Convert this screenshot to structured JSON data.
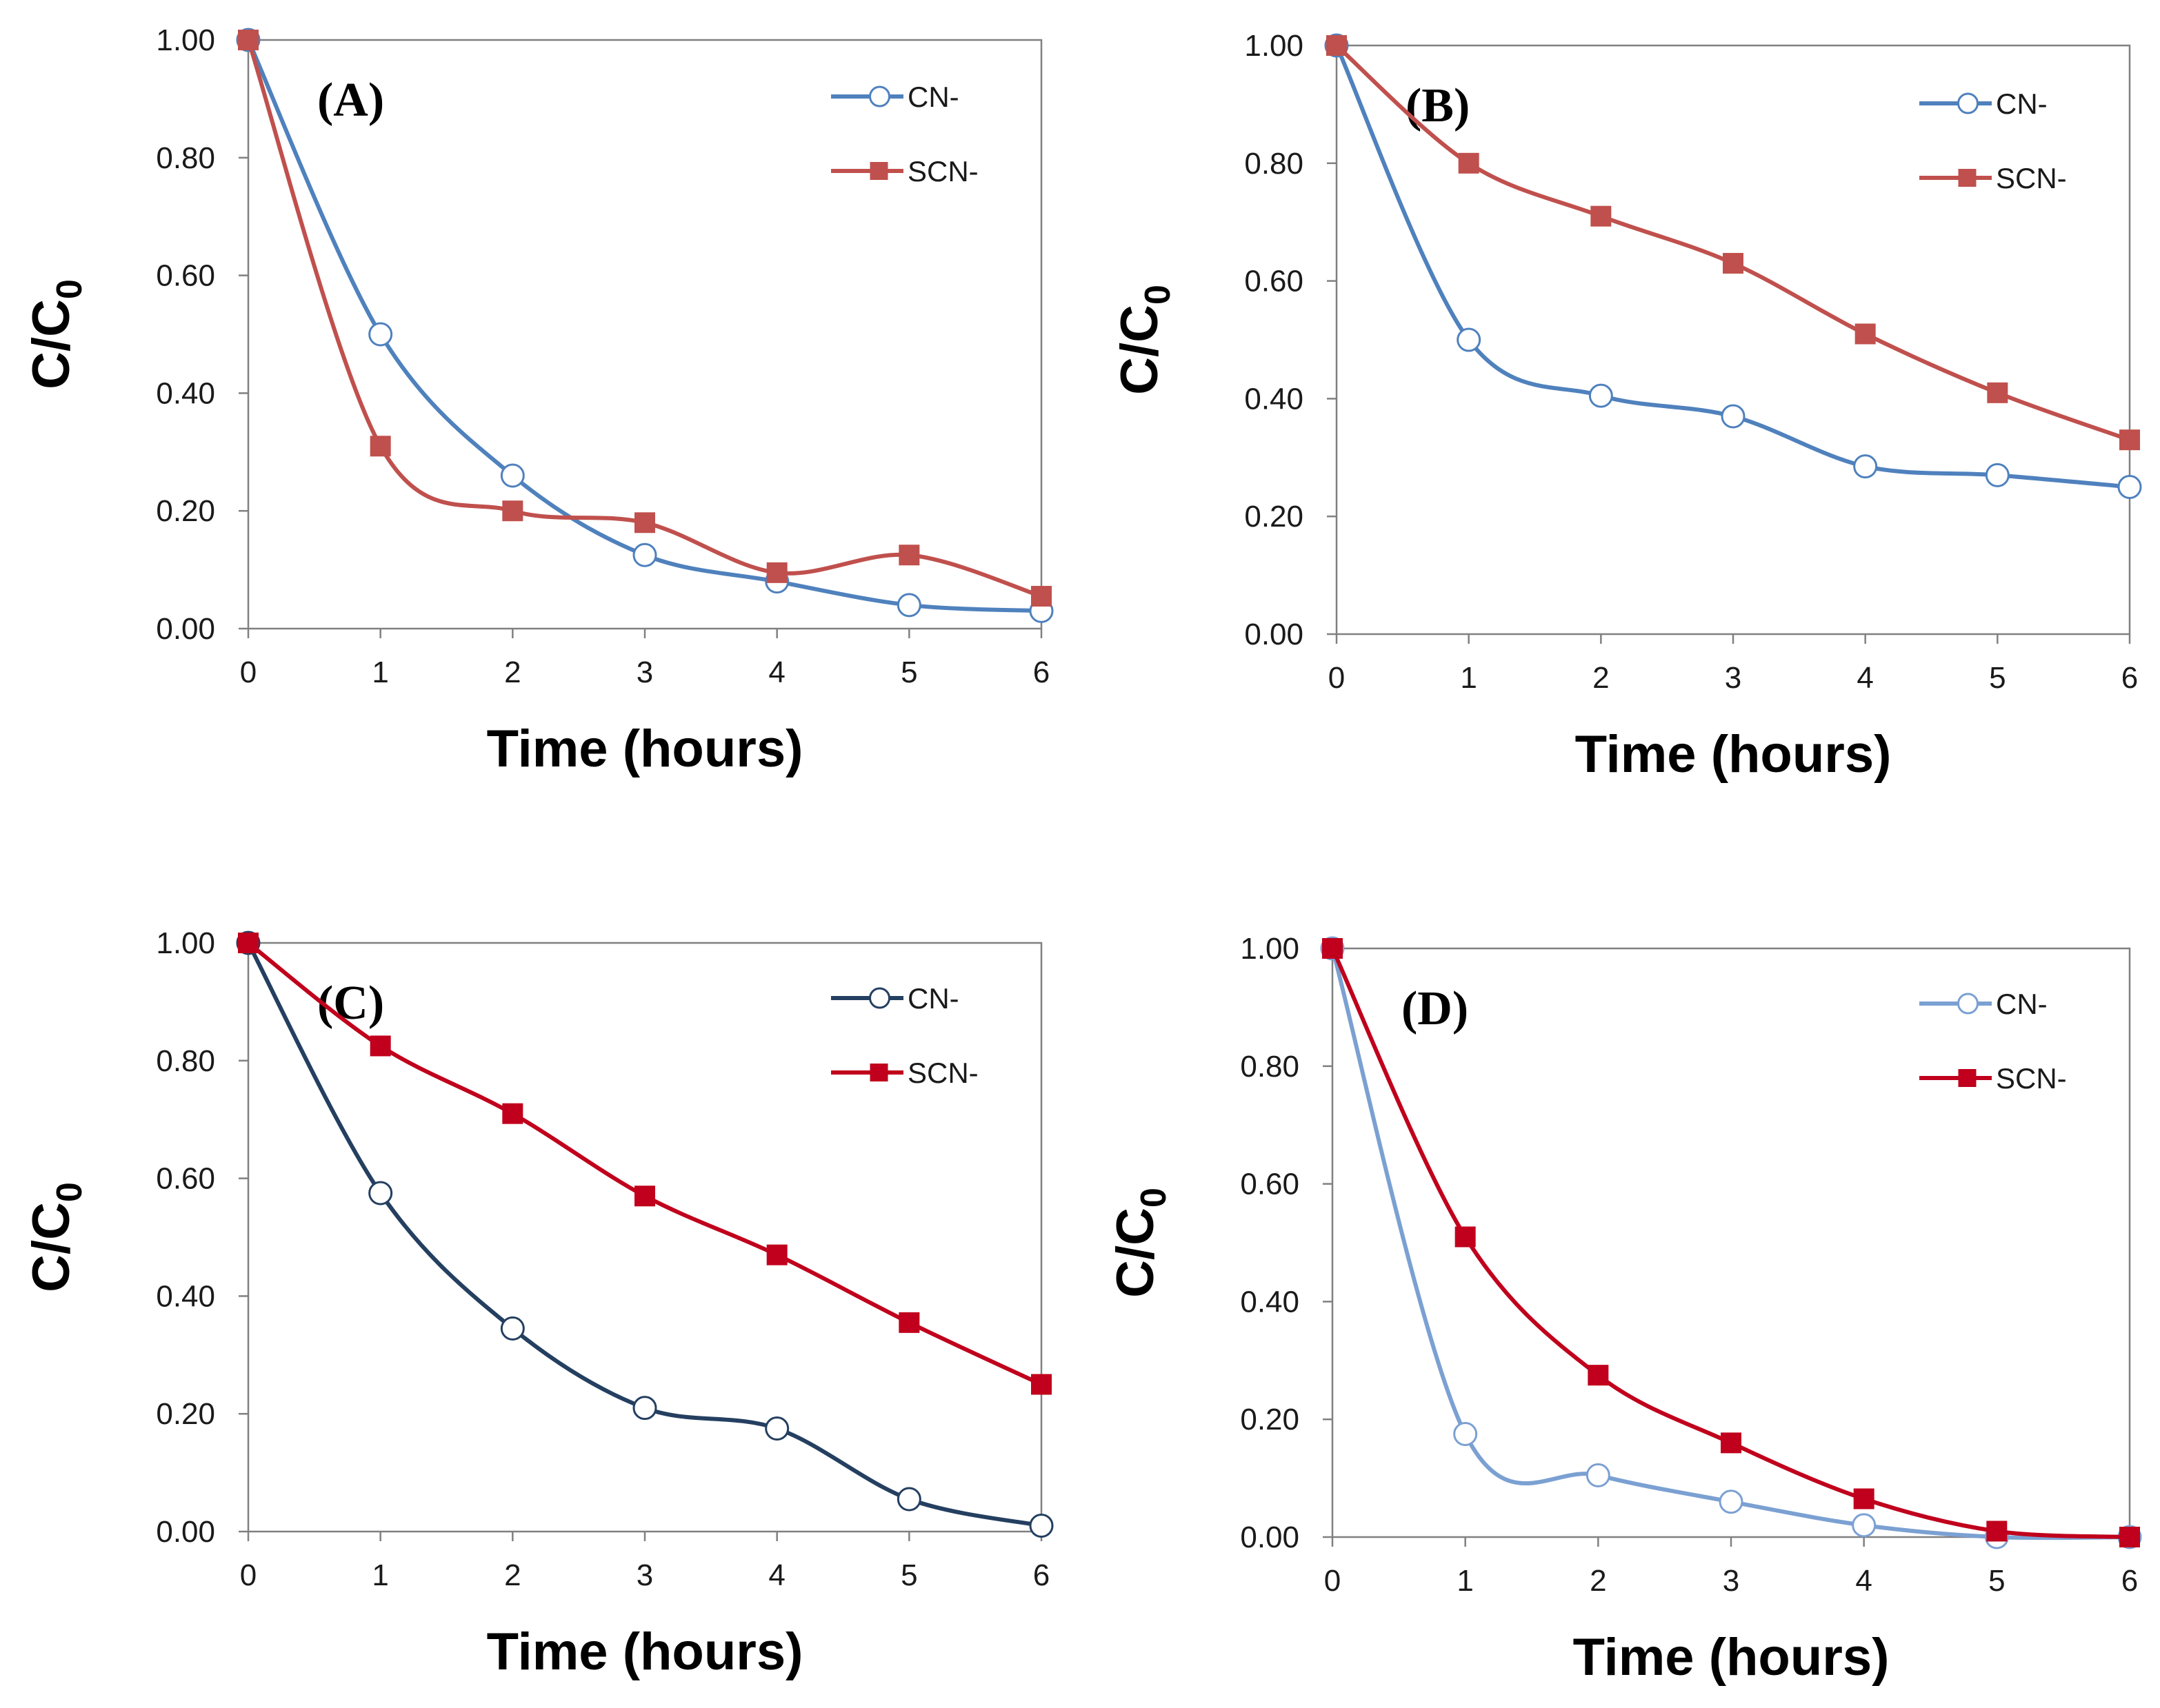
{
  "chart_data": [
    {
      "type": "line",
      "panel_label": "(A)",
      "xlabel": "Time (hours)",
      "ylabel": "C/C",
      "ylabel_sub": "0",
      "x": [
        0,
        1,
        2,
        3,
        4,
        5,
        6
      ],
      "xlim": [
        0,
        6
      ],
      "ylim": [
        0,
        1
      ],
      "xticks": [
        "0",
        "1",
        "2",
        "3",
        "4",
        "5",
        "6"
      ],
      "yticks": [
        "0.00",
        "0.20",
        "0.40",
        "0.60",
        "0.80",
        "1.00"
      ],
      "legend_position": "top-right",
      "series": [
        {
          "name": "CN-",
          "marker": "open-circle",
          "color": "#4f81bd",
          "values": [
            1.0,
            0.5,
            0.26,
            0.125,
            0.08,
            0.04,
            0.03
          ]
        },
        {
          "name": "SCN-",
          "marker": "filled-square",
          "color": "#c0504d",
          "values": [
            1.0,
            0.31,
            0.2,
            0.18,
            0.095,
            0.125,
            0.055
          ]
        }
      ]
    },
    {
      "type": "line",
      "panel_label": "(B)",
      "xlabel": "Time (hours)",
      "ylabel": "C/C",
      "ylabel_sub": "0",
      "x": [
        0,
        1,
        2,
        3,
        4,
        5,
        6
      ],
      "xlim": [
        0,
        6
      ],
      "ylim": [
        0,
        1
      ],
      "xticks": [
        "0",
        "1",
        "2",
        "3",
        "4",
        "5",
        "6"
      ],
      "yticks": [
        "0.00",
        "0.20",
        "0.40",
        "0.60",
        "0.80",
        "1.00"
      ],
      "legend_position": "top-right",
      "series": [
        {
          "name": "CN-",
          "marker": "open-circle",
          "color": "#4f81bd",
          "values": [
            1.0,
            0.5,
            0.405,
            0.37,
            0.285,
            0.27,
            0.25
          ]
        },
        {
          "name": "SCN-",
          "marker": "filled-square",
          "color": "#c0504d",
          "values": [
            1.0,
            0.8,
            0.71,
            0.63,
            0.51,
            0.41,
            0.33
          ]
        }
      ]
    },
    {
      "type": "line",
      "panel_label": "(C)",
      "xlabel": "Time (hours)",
      "ylabel": "C/C",
      "ylabel_sub": "0",
      "x": [
        0,
        1,
        2,
        3,
        4,
        5,
        6
      ],
      "xlim": [
        0,
        6
      ],
      "ylim": [
        0,
        1
      ],
      "xticks": [
        "0",
        "1",
        "2",
        "3",
        "4",
        "5",
        "6"
      ],
      "yticks": [
        "0.00",
        "0.20",
        "0.40",
        "0.60",
        "0.80",
        "1.00"
      ],
      "legend_position": "top-right",
      "series": [
        {
          "name": "CN-",
          "marker": "open-circle",
          "color": "#243f60",
          "values": [
            1.0,
            0.575,
            0.345,
            0.21,
            0.175,
            0.055,
            0.01
          ]
        },
        {
          "name": "SCN-",
          "marker": "filled-square",
          "color": "#c0001c",
          "values": [
            1.0,
            0.825,
            0.71,
            0.57,
            0.47,
            0.355,
            0.25
          ]
        }
      ]
    },
    {
      "type": "line",
      "panel_label": "(D)",
      "xlabel": "Time (hours)",
      "ylabel": "C/C",
      "ylabel_sub": "0",
      "x": [
        0,
        1,
        2,
        3,
        4,
        5,
        6
      ],
      "xlim": [
        0,
        6
      ],
      "ylim": [
        0,
        1
      ],
      "xticks": [
        "0",
        "1",
        "2",
        "3",
        "4",
        "5",
        "6"
      ],
      "yticks": [
        "0.00",
        "0.20",
        "0.40",
        "0.60",
        "0.80",
        "1.00"
      ],
      "legend_position": "top-right",
      "series": [
        {
          "name": "CN-",
          "marker": "open-circle",
          "color": "#7ba0d2",
          "values": [
            1.0,
            0.175,
            0.105,
            0.06,
            0.02,
            0.0,
            0.0
          ]
        },
        {
          "name": "SCN-",
          "marker": "filled-square",
          "color": "#c0001c",
          "values": [
            1.0,
            0.51,
            0.275,
            0.16,
            0.065,
            0.01,
            0.0
          ]
        }
      ]
    }
  ]
}
